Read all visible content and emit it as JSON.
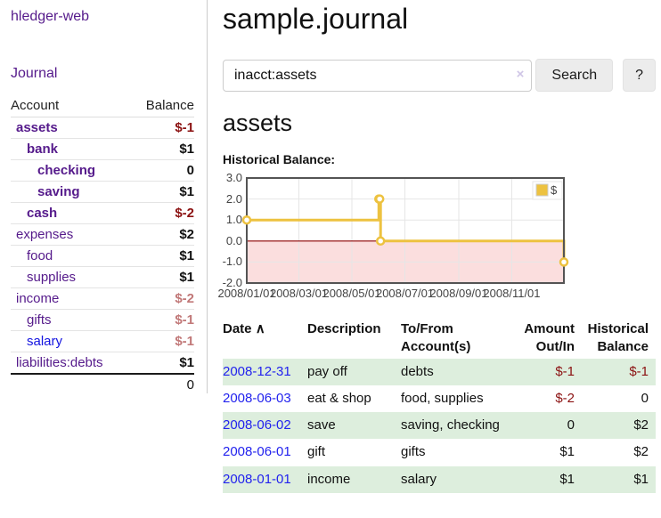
{
  "sidebar": {
    "brand": "hledger-web",
    "journal_link": "Journal",
    "accounts_table": {
      "headers": {
        "account": "Account",
        "balance": "Balance"
      },
      "rows": [
        {
          "name": "assets",
          "indent": 0,
          "bold": true,
          "balance": "$-1",
          "balance_style": "neg"
        },
        {
          "name": "bank",
          "indent": 1,
          "bold": true,
          "balance": "$1",
          "balance_style": ""
        },
        {
          "name": "checking",
          "indent": 2,
          "bold": true,
          "balance": "0",
          "balance_style": ""
        },
        {
          "name": "saving",
          "indent": 2,
          "bold": true,
          "balance": "$1",
          "balance_style": ""
        },
        {
          "name": "cash",
          "indent": 1,
          "bold": true,
          "balance": "$-2",
          "balance_style": "neg"
        },
        {
          "name": "expenses",
          "indent": 0,
          "bold": false,
          "balance": "$2",
          "balance_style": ""
        },
        {
          "name": "food",
          "indent": 1,
          "bold": false,
          "balance": "$1",
          "balance_style": ""
        },
        {
          "name": "supplies",
          "indent": 1,
          "bold": false,
          "balance": "$1",
          "balance_style": ""
        },
        {
          "name": "income",
          "indent": 0,
          "bold": false,
          "balance": "$-2",
          "balance_style": "negmuted"
        },
        {
          "name": "gifts",
          "indent": 1,
          "bold": false,
          "balance": "$-1",
          "balance_style": "negmuted"
        },
        {
          "name": "salary",
          "indent": 1,
          "bold": false,
          "balance": "$-1",
          "balance_style": "negmuted",
          "link_style": "blue"
        },
        {
          "name": "liabilities:debts",
          "indent": 0,
          "bold": false,
          "balance": "$1",
          "balance_style": ""
        }
      ],
      "total": "0"
    }
  },
  "main": {
    "title": "sample.journal",
    "search": {
      "value": "inacct:assets",
      "clear_icon": "×",
      "button_label": "Search",
      "help_label": "?"
    },
    "account_heading": "assets",
    "chart_label": "Historical Balance:",
    "register": {
      "headers": {
        "date": "Date",
        "description": "Description",
        "accounts": "To/From Account(s)",
        "amount": "Amount Out/In",
        "balance": "Historical Balance"
      },
      "sort_icon": "∧",
      "rows": [
        {
          "date": "2008-12-31",
          "description": "pay off",
          "accounts": "debts",
          "amount": "$-1",
          "amount_neg": true,
          "balance": "$-1",
          "balance_neg": true
        },
        {
          "date": "2008-06-03",
          "description": "eat & shop",
          "accounts": "food, supplies",
          "amount": "$-2",
          "amount_neg": true,
          "balance": "0",
          "balance_neg": false
        },
        {
          "date": "2008-06-02",
          "description": "save",
          "accounts": "saving, checking",
          "amount": "0",
          "amount_neg": false,
          "balance": "$2",
          "balance_neg": false
        },
        {
          "date": "2008-06-01",
          "description": "gift",
          "accounts": "gifts",
          "amount": "$1",
          "amount_neg": false,
          "balance": "$2",
          "balance_neg": false
        },
        {
          "date": "2008-01-01",
          "description": "income",
          "accounts": "salary",
          "amount": "$1",
          "amount_neg": false,
          "balance": "$1",
          "balance_neg": false
        }
      ]
    }
  },
  "chart_data": {
    "type": "line",
    "title": "Historical Balance:",
    "step": true,
    "series": [
      {
        "name": "$",
        "color": "#EDC240",
        "points": [
          [
            "2008-01-01",
            1
          ],
          [
            "2008-06-01",
            2
          ],
          [
            "2008-06-02",
            2
          ],
          [
            "2008-06-03",
            0
          ],
          [
            "2008-12-31",
            -1
          ]
        ]
      }
    ],
    "xrange": [
      "2008-01-01",
      "2008-12-31"
    ],
    "ylim": [
      -2,
      3
    ],
    "yticks": [
      3.0,
      2.0,
      1.0,
      0.0,
      -1.0,
      -2.0
    ],
    "ytick_labels": [
      "3.0",
      "2.0",
      "1.0",
      "0.0",
      "-1.0",
      "-2.0"
    ],
    "xticks": [
      "2008-01-01",
      "2008-03-01",
      "2008-05-01",
      "2008-07-01",
      "2008-09-01",
      "2008-11-01"
    ],
    "xtick_labels": [
      "2008/01/01",
      "2008/03/01",
      "2008/05/01",
      "2008/07/01",
      "2008/09/01",
      "2008/11/01"
    ],
    "legend": {
      "label": "$",
      "position": "top-right"
    },
    "grid": true,
    "colors": {
      "grid": "#e6e6e6",
      "plot_border": "#545454",
      "negative_region_fill": "#fbdede",
      "zero_line": "#8b0000",
      "marker_fill": "#ffffff"
    }
  },
  "colors": {
    "link_purple": "#551a8b",
    "link_blue": "#1414e0",
    "date_link_blue": "#2222ee",
    "negative_dark_red": "#8b1111",
    "negative_rose": "#c17878",
    "row_stripe_green": "#ddeedd",
    "chart_series_yellow": "#EDC240",
    "button_gray": "#ececec"
  }
}
